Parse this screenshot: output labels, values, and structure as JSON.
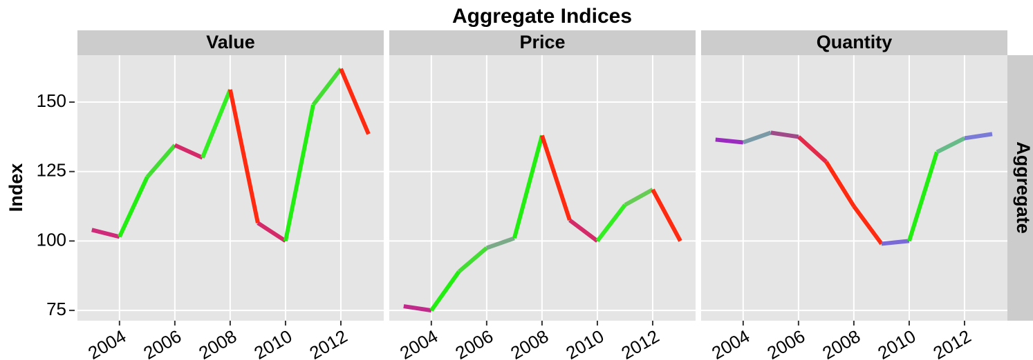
{
  "chart_data": {
    "type": "line",
    "title": "Aggregate Indices",
    "ylabel": "Index",
    "facet_row": "Aggregate",
    "x": [
      2003,
      2004,
      2005,
      2006,
      2007,
      2008,
      2009,
      2010,
      2011,
      2012,
      2013
    ],
    "xlim": [
      2002.48,
      2013.55
    ],
    "xticks": [
      2004,
      2006,
      2008,
      2010,
      2012
    ],
    "ylim": [
      71.3,
      166.9
    ],
    "yticks": [
      75,
      100,
      125,
      150
    ],
    "grid": true,
    "panels": [
      {
        "name": "Value",
        "values": [
          104,
          101.5,
          123,
          134.5,
          130,
          154.5,
          106.5,
          100,
          149,
          162,
          138.5
        ],
        "segment_colors": [
          "#d02a7a",
          "#22ee11",
          "#44dd33",
          "#d42a6a",
          "#33ee22",
          "#ff2a10",
          "#d42a6a",
          "#22ee11",
          "#44dd33",
          "#ff2a10"
        ]
      },
      {
        "name": "Price",
        "values": [
          76.5,
          75,
          89,
          97.5,
          101,
          138,
          107.5,
          100,
          113,
          118.5,
          100
        ],
        "segment_colors": [
          "#c02a8a",
          "#22ee11",
          "#44dd33",
          "#7aaa88",
          "#22ee11",
          "#ff2a10",
          "#d42a6a",
          "#33ee22",
          "#66cc55",
          "#ff2a10"
        ]
      },
      {
        "name": "Quantity",
        "values": [
          136.5,
          135.5,
          139,
          137.5,
          128.5,
          112.5,
          99,
          100,
          132,
          137,
          138.5
        ],
        "segment_colors": [
          "#9a2ac0",
          "#7a9aa8",
          "#a04a8a",
          "#e42a4a",
          "#ff2a10",
          "#ff2a10",
          "#7a6ad8",
          "#22ee11",
          "#66bb88",
          "#7a7ad8"
        ]
      }
    ]
  }
}
